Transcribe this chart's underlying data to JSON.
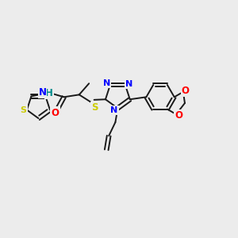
{
  "background_color": "#ececec",
  "bond_color": "#1a1a1a",
  "colors": {
    "N": "#0000ff",
    "S": "#cccc00",
    "O": "#ff0000",
    "H": "#008b8b",
    "C": "#1a1a1a"
  },
  "figsize": [
    3.0,
    3.0
  ],
  "dpi": 100
}
